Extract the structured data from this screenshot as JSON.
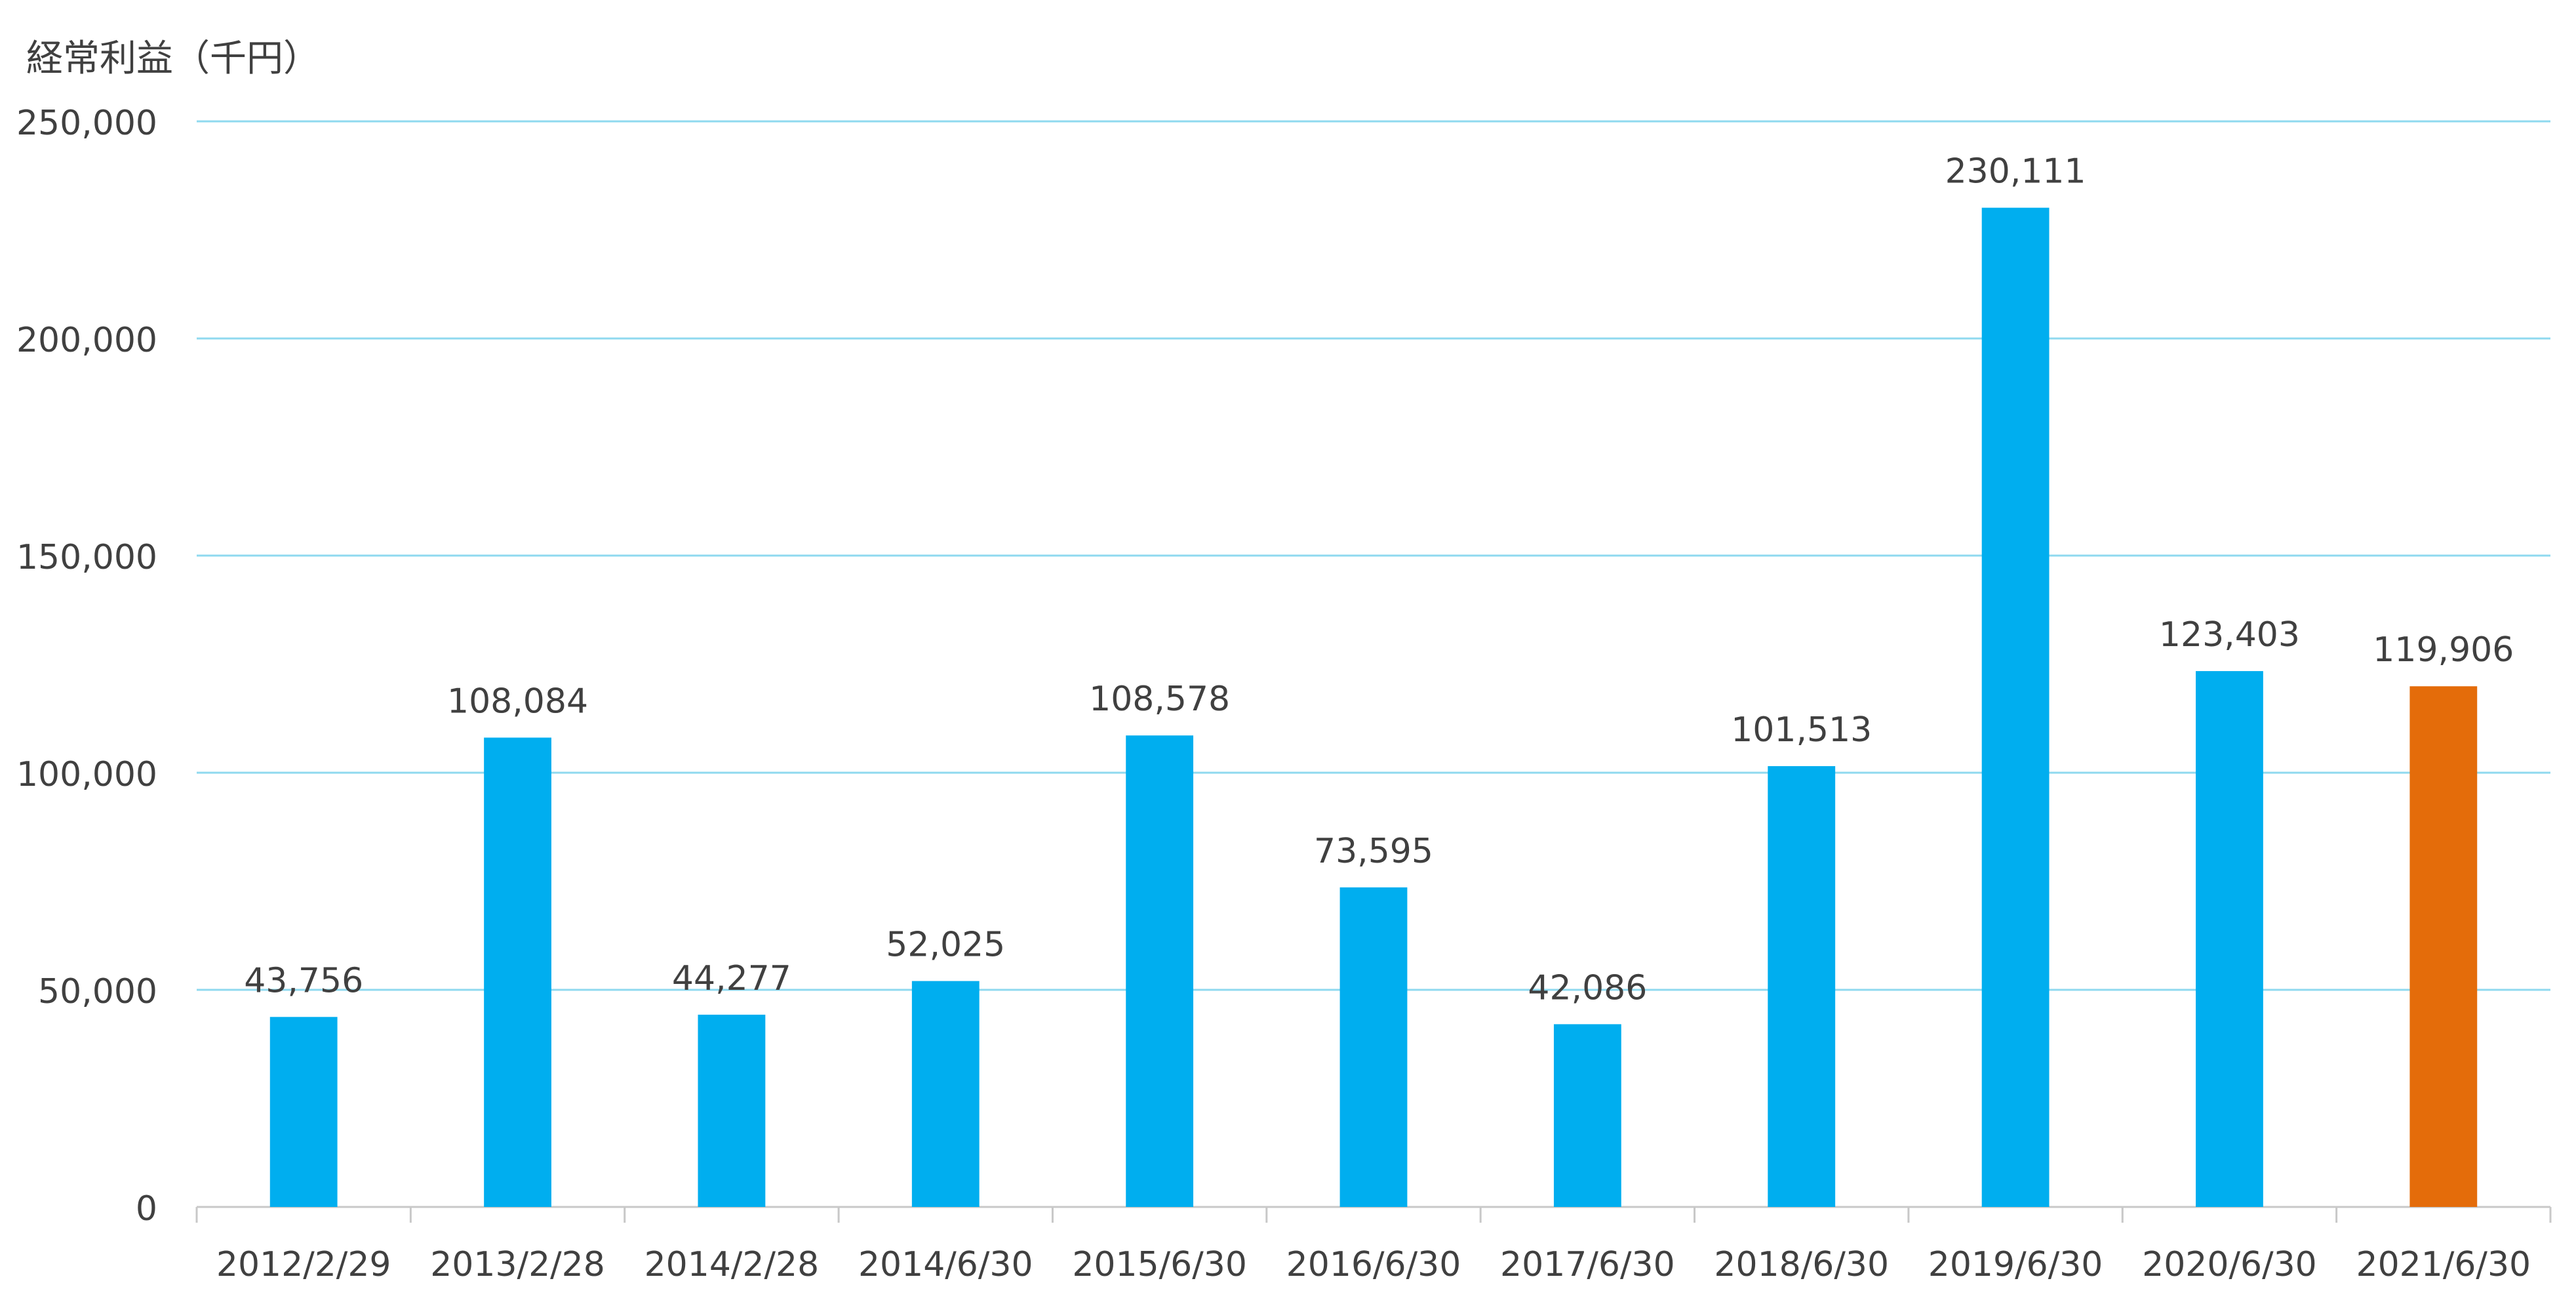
{
  "chart_data": {
    "type": "bar",
    "title": "経常利益（千円）",
    "categories": [
      "2012/2/29",
      "2013/2/28",
      "2014/2/28",
      "2014/6/30",
      "2015/6/30",
      "2016/6/30",
      "2017/6/30",
      "2018/6/30",
      "2019/6/30",
      "2020/6/30",
      "2021/6/30"
    ],
    "values": [
      43756,
      108084,
      44277,
      52025,
      108578,
      73595,
      42086,
      101513,
      230111,
      123403,
      119906
    ],
    "data_labels": [
      "43,756",
      "108,084",
      "44,277",
      "52,025",
      "108,578",
      "73,595",
      "42,086",
      "101,513",
      "230,111",
      "123,403",
      "119,906"
    ],
    "bar_colors": [
      "#00aeef",
      "#00aeef",
      "#00aeef",
      "#00aeef",
      "#00aeef",
      "#00aeef",
      "#00aeef",
      "#00aeef",
      "#00aeef",
      "#00aeef",
      "#e46c0a"
    ],
    "ylim": [
      0,
      250000
    ],
    "yticks": [
      0,
      50000,
      100000,
      150000,
      200000,
      250000
    ],
    "ytick_labels": [
      "0",
      "50,000",
      "100,000",
      "150,000",
      "200,000",
      "250,000"
    ],
    "grid": true,
    "gridline_color": "#8fd9ef",
    "axis_color": "#c8c8c8",
    "text_color": "#404040",
    "legend": "none"
  }
}
